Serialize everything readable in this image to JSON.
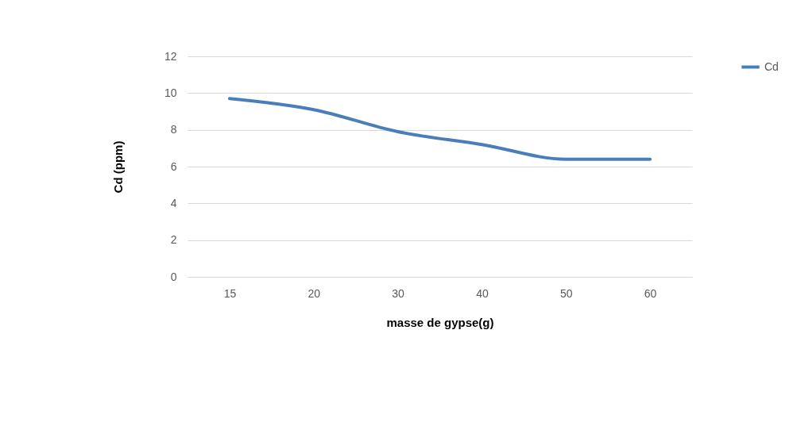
{
  "chart_data": {
    "type": "line",
    "xlabel": "masse de gypse(g)",
    "ylabel": "Cd (ppm)",
    "categories": [
      "15",
      "20",
      "30",
      "40",
      "50",
      "60"
    ],
    "series": [
      {
        "name": "Cd",
        "color": "#4a7ebb",
        "values": [
          9.7,
          9.1,
          7.9,
          7.2,
          6.4,
          6.4
        ]
      }
    ],
    "ylim": [
      0,
      12
    ],
    "yticks": [
      0,
      2,
      4,
      6,
      8,
      10,
      12
    ],
    "grid": "y",
    "legend": "right",
    "marker": "none",
    "line_style": "solid"
  }
}
